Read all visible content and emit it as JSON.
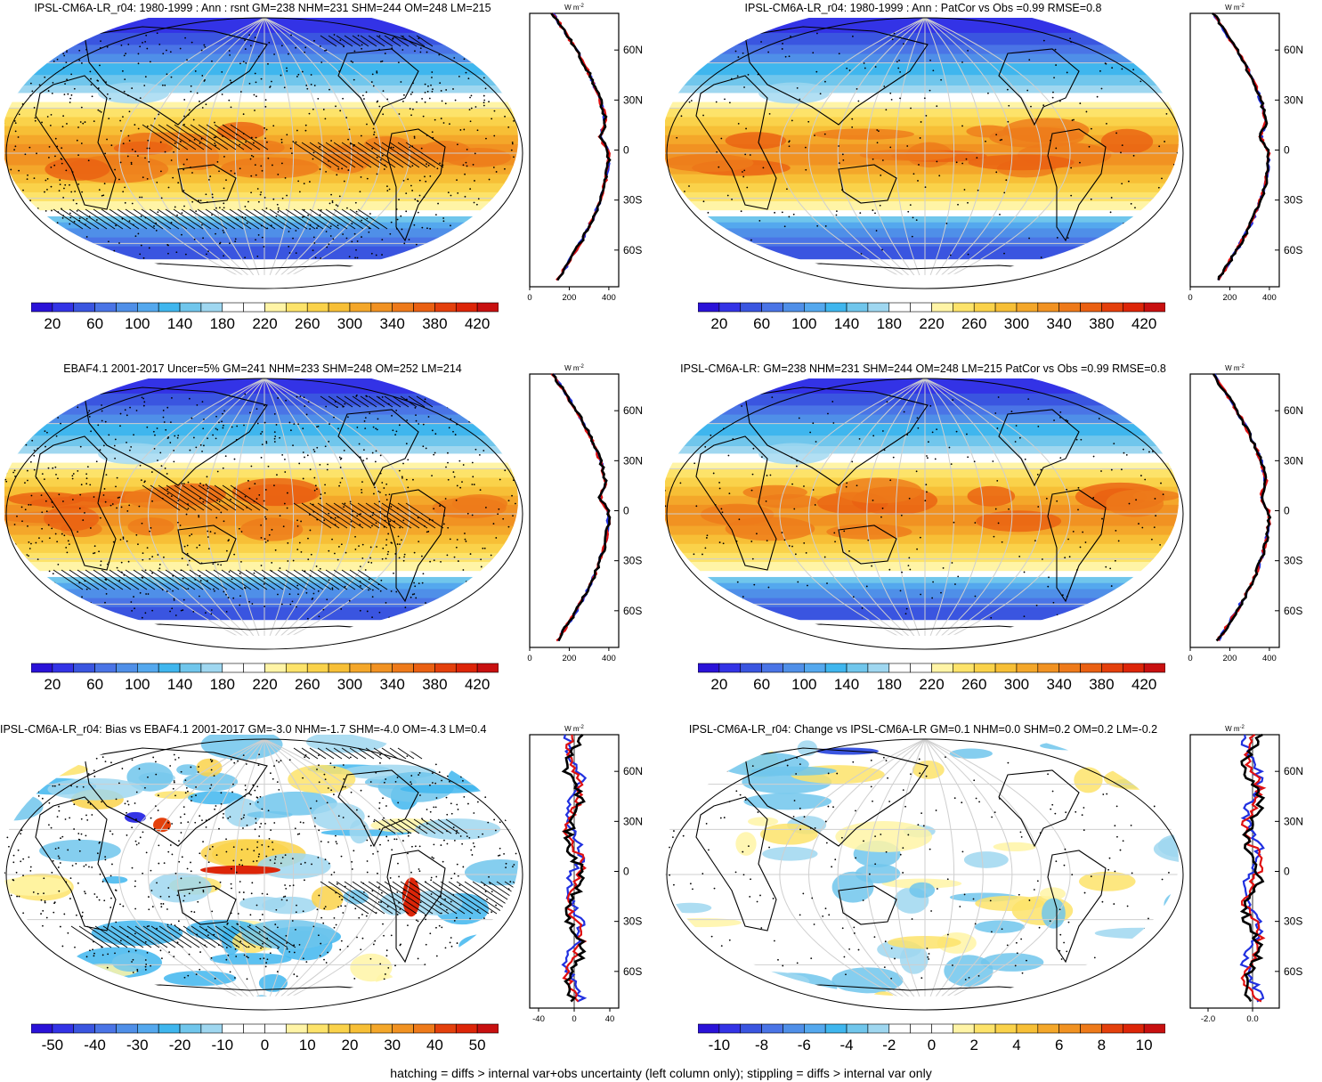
{
  "panels": [
    {
      "title": "IPSL-CM6A-LR_r04: 1980-1999 : Ann : rsnt GM=238 NHM=231 SHM=244 OM=248 LM=215",
      "kind": "absolute",
      "hatched": true,
      "colorbar_labels": [
        "20",
        "60",
        "100",
        "140",
        "180",
        "220",
        "260",
        "300",
        "340",
        "380",
        "420"
      ],
      "profile": {
        "units": "W m",
        "units_sup": "-2",
        "lat_ticks": [
          "60N",
          "30N",
          "0",
          "30S",
          "60S"
        ],
        "x_ticks": [
          "0",
          "200",
          "400"
        ],
        "xlim": [
          0,
          450
        ],
        "line_colors": [
          "#2030e0",
          "#e01010",
          "#000000"
        ]
      }
    },
    {
      "title": "IPSL-CM6A-LR_r04: 1980-1999 : Ann : PatCor vs Obs =0.99 RMSE=0.8",
      "kind": "absolute",
      "hatched": false,
      "colorbar_labels": [
        "20",
        "60",
        "100",
        "140",
        "180",
        "220",
        "260",
        "300",
        "340",
        "380",
        "420"
      ],
      "profile": {
        "units": "W m",
        "units_sup": "-2",
        "lat_ticks": [
          "60N",
          "30N",
          "0",
          "30S",
          "60S"
        ],
        "x_ticks": [
          "0",
          "200",
          "400"
        ],
        "xlim": [
          0,
          450
        ],
        "line_colors": [
          "#2030e0",
          "#e01010",
          "#000000"
        ]
      }
    },
    {
      "title": "EBAF4.1 2001-2017 Uncer=5% GM=241 NHM=233 SHM=248 OM=252 LM=214",
      "kind": "absolute",
      "hatched": true,
      "colorbar_labels": [
        "20",
        "60",
        "100",
        "140",
        "180",
        "220",
        "260",
        "300",
        "340",
        "380",
        "420"
      ],
      "profile": {
        "units": "W m",
        "units_sup": "-2",
        "lat_ticks": [
          "60N",
          "30N",
          "0",
          "30S",
          "60S"
        ],
        "x_ticks": [
          "0",
          "200",
          "400"
        ],
        "xlim": [
          0,
          450
        ],
        "line_colors": [
          "#2030e0",
          "#e01010",
          "#000000"
        ]
      }
    },
    {
      "title": "IPSL-CM6A-LR: GM=238 NHM=231 SHM=244 OM=248 LM=215 PatCor vs Obs =0.99 RMSE=0.8",
      "kind": "absolute",
      "hatched": false,
      "colorbar_labels": [
        "20",
        "60",
        "100",
        "140",
        "180",
        "220",
        "260",
        "300",
        "340",
        "380",
        "420"
      ],
      "profile": {
        "units": "W m",
        "units_sup": "-2",
        "lat_ticks": [
          "60N",
          "30N",
          "0",
          "30S",
          "60S"
        ],
        "x_ticks": [
          "0",
          "200",
          "400"
        ],
        "xlim": [
          0,
          450
        ],
        "line_colors": [
          "#2030e0",
          "#e01010",
          "#000000"
        ]
      }
    },
    {
      "title": "IPSL-CM6A-LR_r04: Bias vs EBAF4.1 2001-2017 GM=-3.0 NHM=-1.7 SHM=-4.0 OM=-4.3 LM=0.4",
      "kind": "bias",
      "hatched": true,
      "colorbar_labels": [
        "-50",
        "-40",
        "-30",
        "-20",
        "-10",
        "0",
        "10",
        "20",
        "30",
        "40",
        "50"
      ],
      "profile": {
        "units": "W m",
        "units_sup": "-2",
        "lat_ticks": [
          "60N",
          "30N",
          "0",
          "30S",
          "60S"
        ],
        "x_ticks": [
          "-40",
          "0",
          "40"
        ],
        "xlim": [
          -50,
          50
        ],
        "line_colors": [
          "#2030e0",
          "#e01010",
          "#000000"
        ]
      }
    },
    {
      "title": "IPSL-CM6A-LR_r04: Change vs IPSL-CM6A-LR GM=0.1 NHM=0.0 SHM=0.2 OM=0.2 LM=-0.2",
      "kind": "change",
      "hatched": false,
      "colorbar_labels": [
        "-10",
        "-8",
        "-6",
        "-4",
        "-2",
        "0",
        "2",
        "4",
        "6",
        "8",
        "10"
      ],
      "profile": {
        "units": "W m",
        "units_sup": "-2",
        "lat_ticks": [
          "60N",
          "30N",
          "0",
          "30S",
          "60S"
        ],
        "x_ticks": [
          "-2.0",
          "0.0"
        ],
        "xlim": [
          -2.8,
          1.2
        ],
        "line_colors": [
          "#2030e0",
          "#e01010",
          "#000000"
        ]
      }
    }
  ],
  "palettes": {
    "absolute": [
      "#2a12d8",
      "#3333e6",
      "#3a55e0",
      "#4a74e6",
      "#4f8fe8",
      "#54a8ee",
      "#3fb6ee",
      "#70c6ec",
      "#9fd7f0",
      "#ffffff",
      "#ffffff",
      "#fff4a6",
      "#fde36a",
      "#fad24a",
      "#f7bf36",
      "#f4a72a",
      "#f19222",
      "#ee7a1a",
      "#ea6012",
      "#e4400c",
      "#dd2508",
      "#c81010"
    ],
    "diff": [
      "#2a12d8",
      "#3333e6",
      "#3a55e0",
      "#4a74e6",
      "#4f8fe8",
      "#54a8ee",
      "#3fb6ee",
      "#70c6ec",
      "#9fd7f0",
      "#ffffff",
      "#ffffff",
      "#ffffff",
      "#fff4a6",
      "#fde36a",
      "#fad24a",
      "#f7bf36",
      "#f4a72a",
      "#f19222",
      "#ee7a1a",
      "#e4400c",
      "#dd2508",
      "#c81010"
    ]
  },
  "footer": "hatching = diffs > internal var+obs uncertainty (left column only); stippling = diffs > internal var only"
}
